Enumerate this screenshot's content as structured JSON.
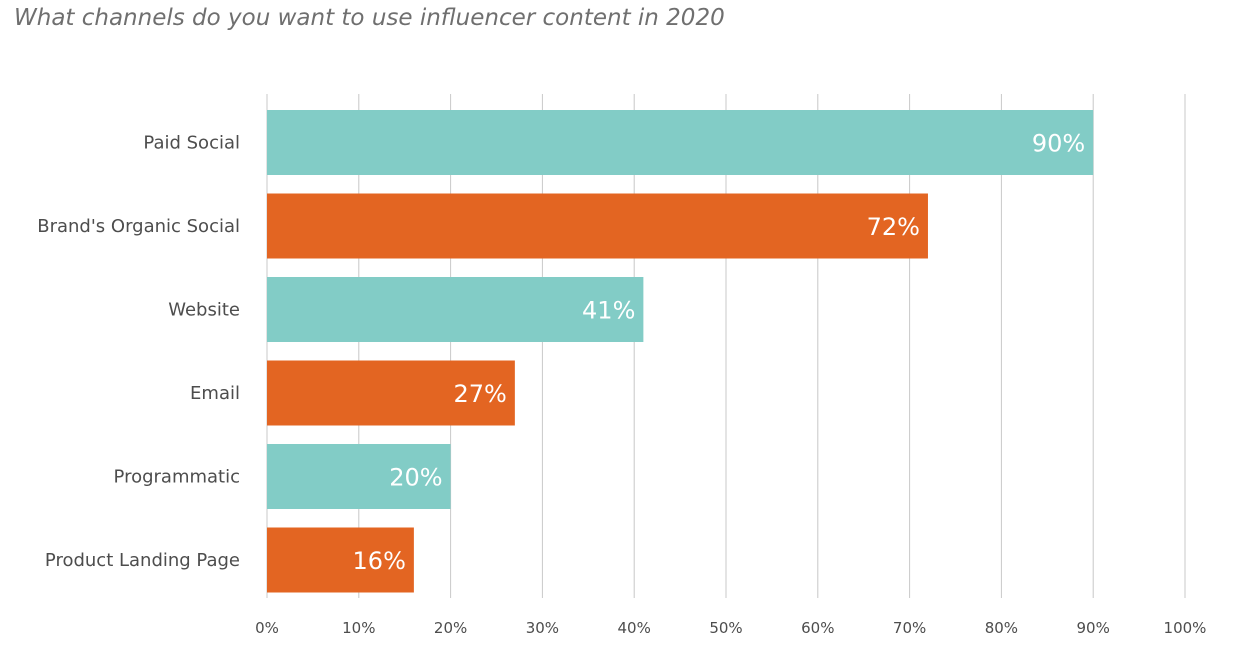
{
  "chart_data": {
    "type": "bar",
    "orientation": "horizontal",
    "title": "What channels do you want to use influencer content in 2020",
    "categories": [
      "Paid Social",
      "Brand's Organic Social",
      "Website",
      "Email",
      "Programmatic",
      "Product Landing Page"
    ],
    "values": [
      90,
      72,
      41,
      27,
      20,
      16
    ],
    "data_labels": [
      "90%",
      "72%",
      "41%",
      "27%",
      "20%",
      "16%"
    ],
    "bar_colors": [
      "#82ccc6",
      "#e36522",
      "#82ccc6",
      "#e36522",
      "#82ccc6",
      "#e36522"
    ],
    "xlim": [
      0,
      100
    ],
    "xticks": [
      0,
      10,
      20,
      30,
      40,
      50,
      60,
      70,
      80,
      90,
      100
    ],
    "xtick_labels": [
      "0%",
      "10%",
      "20%",
      "30%",
      "40%",
      "50%",
      "60%",
      "70%",
      "80%",
      "90%",
      "100%"
    ],
    "grid": true,
    "xlabel": "",
    "ylabel": ""
  }
}
